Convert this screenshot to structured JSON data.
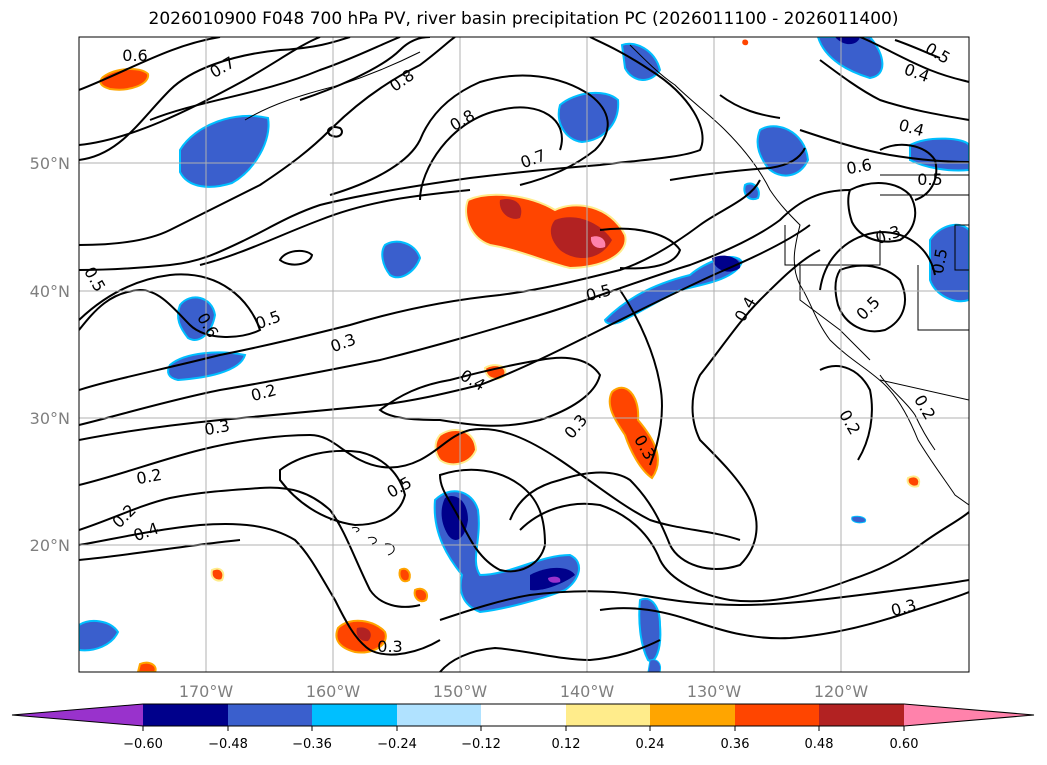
{
  "title": "2026010900 F048 700 hPa PV, river basin precipitation PC (2026011100 - 2026011400)",
  "map": {
    "lat_labels": [
      "50°N",
      "40°N",
      "30°N",
      "20°N"
    ],
    "lon_labels": [
      "170°W",
      "160°W",
      "150°W",
      "140°W",
      "130°W",
      "120°W"
    ],
    "contour_labels": [
      "0.6",
      "0.7",
      "0.8",
      "0.8",
      "0.7",
      "0.4",
      "0.5",
      "0.4",
      "0.6",
      "0.5",
      "0.3",
      "0.5",
      "0.5",
      "0.5",
      "0.6",
      "0.5",
      "0.3",
      "0.2",
      "0.3",
      "0.2",
      "0.2",
      "0.4",
      "0.4",
      "0.5",
      "0.3",
      "0.5",
      "0.3",
      "0.4",
      "0.2",
      "0.2"
    ]
  },
  "colorbar": {
    "tick_labels": [
      "−0.60",
      "−0.48",
      "−0.36",
      "−0.24",
      "−0.12",
      "0.12",
      "0.24",
      "0.36",
      "0.48",
      "0.60"
    ],
    "colors": [
      "#9932cc",
      "#00008b",
      "#3a5fcd",
      "#00bfff",
      "#b0e2ff",
      "#ffffff",
      "#ffec8b",
      "#ffa500",
      "#ff4500",
      "#b22222",
      "#ff82ab"
    ]
  }
}
